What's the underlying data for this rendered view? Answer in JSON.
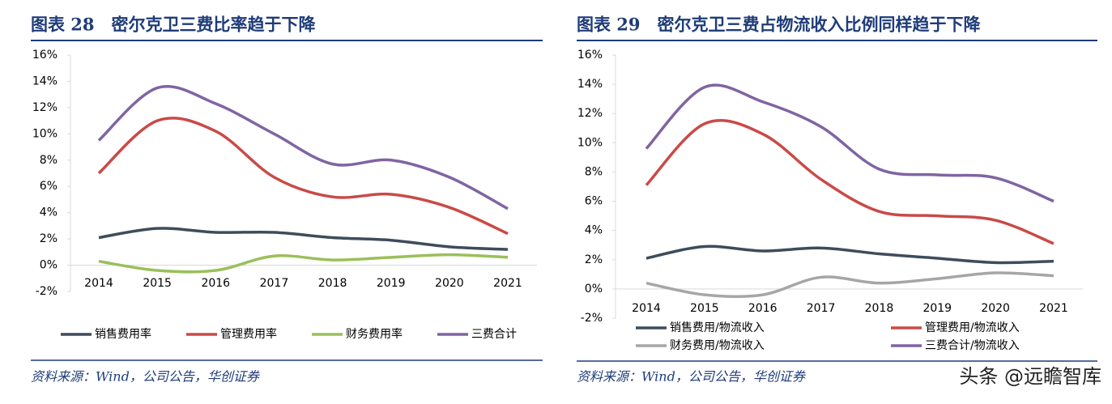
{
  "chart_data": [
    {
      "type": "line",
      "title": "图表 28　密尔克卫三费比率趋于下降",
      "source": "资料来源：Wind，公司公告，华创证券",
      "categories": [
        "2014",
        "2015",
        "2016",
        "2017",
        "2018",
        "2019",
        "2020",
        "2021"
      ],
      "series": [
        {
          "name": "销售费用率",
          "color": "#3e4c5b",
          "values": [
            2.1,
            2.8,
            2.5,
            2.5,
            2.1,
            1.9,
            1.4,
            1.2
          ]
        },
        {
          "name": "管理费用率",
          "color": "#c94a47",
          "values": [
            7.0,
            11.0,
            10.2,
            6.7,
            5.2,
            5.4,
            4.4,
            2.4
          ]
        },
        {
          "name": "财务费用率",
          "color": "#9bbf5a",
          "values": [
            0.3,
            -0.4,
            -0.4,
            0.7,
            0.4,
            0.6,
            0.8,
            0.6
          ]
        },
        {
          "name": "三费合计",
          "color": "#8064a2",
          "values": [
            9.5,
            13.5,
            12.3,
            10.0,
            7.7,
            8.0,
            6.7,
            4.3
          ]
        }
      ],
      "ylim": [
        -2,
        16
      ],
      "yticks": [
        {
          "value": -2,
          "label": "-2%"
        },
        {
          "value": 0,
          "label": "0%"
        },
        {
          "value": 2,
          "label": "2%"
        },
        {
          "value": 4,
          "label": "4%"
        },
        {
          "value": 6,
          "label": "6%"
        },
        {
          "value": 8,
          "label": "8%"
        },
        {
          "value": 10,
          "label": "10%"
        },
        {
          "value": 12,
          "label": "12%"
        },
        {
          "value": 14,
          "label": "14%"
        },
        {
          "value": 16,
          "label": "16%"
        }
      ],
      "grid": false
    },
    {
      "type": "line",
      "title": "图表 29　密尔克卫三费占物流收入比例同样趋于下降",
      "source": "资料来源：Wind，公司公告，华创证券",
      "categories": [
        "2014",
        "2015",
        "2016",
        "2017",
        "2018",
        "2019",
        "2020",
        "2021"
      ],
      "series": [
        {
          "name": "销售费用/物流收入",
          "color": "#3e4c5b",
          "values": [
            2.1,
            2.9,
            2.6,
            2.8,
            2.4,
            2.1,
            1.8,
            1.9
          ]
        },
        {
          "name": "管理费用/物流收入",
          "color": "#c94a47",
          "values": [
            7.1,
            11.3,
            10.6,
            7.5,
            5.3,
            5.0,
            4.7,
            3.1
          ]
        },
        {
          "name": "财务费用/物流收入",
          "color": "#a6a6a6",
          "values": [
            0.4,
            -0.4,
            -0.4,
            0.8,
            0.4,
            0.7,
            1.1,
            0.9
          ]
        },
        {
          "name": "三费合计/物流收入",
          "color": "#8064a2",
          "values": [
            9.6,
            13.8,
            12.8,
            11.1,
            8.2,
            7.8,
            7.6,
            6.0
          ]
        }
      ],
      "ylim": [
        -2,
        16
      ],
      "yticks": [
        {
          "value": -2,
          "label": "-2%"
        },
        {
          "value": 0,
          "label": "0%"
        },
        {
          "value": 2,
          "label": "2%"
        },
        {
          "value": 4,
          "label": "4%"
        },
        {
          "value": 6,
          "label": "6%"
        },
        {
          "value": 8,
          "label": "8%"
        },
        {
          "value": 10,
          "label": "10%"
        },
        {
          "value": 12,
          "label": "12%"
        },
        {
          "value": 14,
          "label": "14%"
        },
        {
          "value": 16,
          "label": "16%"
        }
      ],
      "grid": false
    }
  ],
  "watermark": "头条 @远瞻智库"
}
